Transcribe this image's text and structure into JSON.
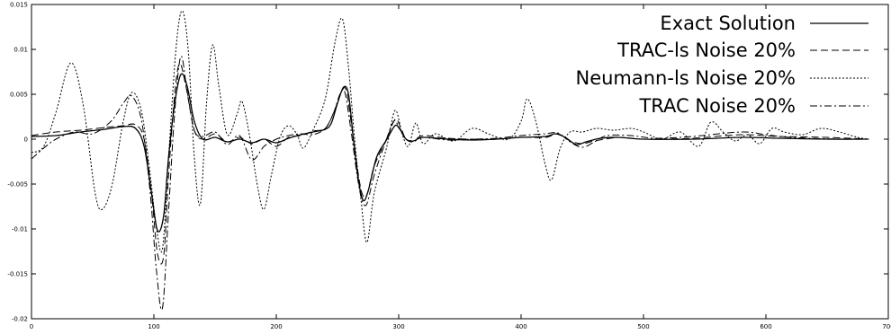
{
  "chart_data": {
    "type": "line",
    "title": "",
    "xlabel": "",
    "ylabel": "",
    "xlim": [
      0,
      700
    ],
    "ylim": [
      -0.02,
      0.015
    ],
    "grid": false,
    "legend_position": "top-right",
    "x_ticks": [
      {
        "value": 0,
        "label": "0"
      },
      {
        "value": 100,
        "label": "100"
      },
      {
        "value": 200,
        "label": "200"
      },
      {
        "value": 300,
        "label": "300"
      },
      {
        "value": 400,
        "label": "400"
      },
      {
        "value": 500,
        "label": "500"
      },
      {
        "value": 600,
        "label": "600"
      },
      {
        "value": 700,
        "label": "700"
      }
    ],
    "y_ticks": [
      {
        "value": 0.015,
        "label": "0.015"
      },
      {
        "value": 0.01,
        "label": "0.01"
      },
      {
        "value": 0.005,
        "label": "0.005"
      },
      {
        "value": 0,
        "label": "0"
      },
      {
        "value": -0.005,
        "label": "-0.005"
      },
      {
        "value": -0.01,
        "label": "-0.01"
      },
      {
        "value": -0.015,
        "label": "-0.015"
      },
      {
        "value": -0.02,
        "label": "-0.02"
      }
    ],
    "series": [
      {
        "name": "Exact Solution",
        "dash": "solid",
        "points": [
          [
            0,
            0.0003
          ],
          [
            20,
            0.0004
          ],
          [
            40,
            0.0008
          ],
          [
            60,
            0.0011
          ],
          [
            75,
            0.0014
          ],
          [
            85,
            0.0012
          ],
          [
            92,
            -0.0008
          ],
          [
            98,
            -0.006
          ],
          [
            103,
            -0.0102
          ],
          [
            108,
            -0.0085
          ],
          [
            112,
            -0.002
          ],
          [
            117,
            0.004
          ],
          [
            122,
            0.0072
          ],
          [
            127,
            0.006
          ],
          [
            133,
            0.002
          ],
          [
            140,
            0
          ],
          [
            150,
            0.0002
          ],
          [
            160,
            -0.0003
          ],
          [
            170,
            0
          ],
          [
            180,
            -0.0004
          ],
          [
            190,
            0
          ],
          [
            200,
            -0.0004
          ],
          [
            210,
            0.0001
          ],
          [
            220,
            0.0005
          ],
          [
            230,
            0.0008
          ],
          [
            240,
            0.0011
          ],
          [
            245,
            0.0018
          ],
          [
            250,
            0.004
          ],
          [
            255,
            0.0058
          ],
          [
            259,
            0.005
          ],
          [
            263,
            0
          ],
          [
            267,
            -0.0045
          ],
          [
            271,
            -0.0068
          ],
          [
            275,
            -0.0058
          ],
          [
            282,
            -0.002
          ],
          [
            290,
            -0.0001
          ],
          [
            297,
            0.0015
          ],
          [
            301,
            0.0011
          ],
          [
            306,
            0
          ],
          [
            312,
            -0.0002
          ],
          [
            320,
            0.0002
          ],
          [
            340,
            0
          ],
          [
            360,
            -0.0001
          ],
          [
            380,
            0
          ],
          [
            400,
            0.0002
          ],
          [
            420,
            0.0003
          ],
          [
            428,
            0.0006
          ],
          [
            436,
            0.0002
          ],
          [
            445,
            -0.0006
          ],
          [
            453,
            -0.0003
          ],
          [
            465,
            0.0001
          ],
          [
            480,
            0.0002
          ],
          [
            500,
            0
          ],
          [
            540,
            0
          ],
          [
            580,
            0.0002
          ],
          [
            610,
            0.0001
          ],
          [
            650,
            0
          ],
          [
            684,
            0
          ]
        ]
      },
      {
        "name": "TRAC-ls Noise 20%",
        "dash": "8,4",
        "points": [
          [
            0,
            0.0004
          ],
          [
            20,
            0.0008
          ],
          [
            40,
            0.001
          ],
          [
            60,
            0.0013
          ],
          [
            75,
            0.0015
          ],
          [
            85,
            0.0016
          ],
          [
            92,
            0
          ],
          [
            98,
            -0.006
          ],
          [
            103,
            -0.0128
          ],
          [
            108,
            -0.013
          ],
          [
            112,
            -0.004
          ],
          [
            117,
            0.005
          ],
          [
            121,
            0.0084
          ],
          [
            126,
            0.006
          ],
          [
            133,
            0.001
          ],
          [
            140,
            0
          ],
          [
            150,
            0.0006
          ],
          [
            160,
            -0.0003
          ],
          [
            170,
            0.0002
          ],
          [
            180,
            -0.0005
          ],
          [
            190,
            0
          ],
          [
            200,
            -0.0008
          ],
          [
            210,
            0.0002
          ],
          [
            220,
            0.0004
          ],
          [
            230,
            0.0009
          ],
          [
            240,
            0.0012
          ],
          [
            247,
            0.003
          ],
          [
            253,
            0.0052
          ],
          [
            257,
            0.0055
          ],
          [
            261,
            0.002
          ],
          [
            266,
            -0.003
          ],
          [
            270,
            -0.006
          ],
          [
            274,
            -0.0062
          ],
          [
            280,
            -0.003
          ],
          [
            290,
            0
          ],
          [
            297,
            0.0022
          ],
          [
            301,
            0.0015
          ],
          [
            306,
            0
          ],
          [
            312,
            -0.0002
          ],
          [
            320,
            0.0004
          ],
          [
            340,
            0.0001
          ],
          [
            360,
            0
          ],
          [
            380,
            0
          ],
          [
            400,
            0.0002
          ],
          [
            420,
            0.0002
          ],
          [
            430,
            0.0006
          ],
          [
            440,
            -0.0002
          ],
          [
            450,
            -0.0005
          ],
          [
            460,
            -0.0002
          ],
          [
            480,
            0.0002
          ],
          [
            500,
            0
          ],
          [
            540,
            0.0001
          ],
          [
            580,
            0.0005
          ],
          [
            610,
            0.0003
          ],
          [
            650,
            0.0002
          ],
          [
            684,
            0
          ]
        ]
      },
      {
        "name": "Neumann-ls Noise 20%",
        "dash": "2,2",
        "points": [
          [
            0,
            -0.0015
          ],
          [
            10,
            -0.0008
          ],
          [
            20,
            0.003
          ],
          [
            32,
            0.0085
          ],
          [
            42,
            0.004
          ],
          [
            52,
            -0.006
          ],
          [
            58,
            -0.0078
          ],
          [
            66,
            -0.005
          ],
          [
            75,
            0.002
          ],
          [
            82,
            0.0052
          ],
          [
            90,
            0.003
          ],
          [
            97,
            -0.004
          ],
          [
            102,
            -0.0098
          ],
          [
            107,
            -0.0122
          ],
          [
            112,
            -0.002
          ],
          [
            118,
            0.01
          ],
          [
            123,
            0.0143
          ],
          [
            128,
            0.01
          ],
          [
            133,
            -0.002
          ],
          [
            138,
            -0.0072
          ],
          [
            143,
            0.004
          ],
          [
            148,
            0.0105
          ],
          [
            153,
            0.006
          ],
          [
            160,
            0.0005
          ],
          [
            168,
            0.0028
          ],
          [
            172,
            0.0042
          ],
          [
            178,
            0.0005
          ],
          [
            185,
            -0.0055
          ],
          [
            190,
            -0.0078
          ],
          [
            196,
            -0.004
          ],
          [
            203,
            0.0002
          ],
          [
            210,
            0.0015
          ],
          [
            217,
            0.0005
          ],
          [
            222,
            -0.001
          ],
          [
            230,
            0.001
          ],
          [
            240,
            0.0045
          ],
          [
            248,
            0.0108
          ],
          [
            254,
            0.0134
          ],
          [
            259,
            0.008
          ],
          [
            264,
            0
          ],
          [
            269,
            -0.0065
          ],
          [
            274,
            -0.0115
          ],
          [
            280,
            -0.006
          ],
          [
            290,
            -0.001
          ],
          [
            297,
            0.0032
          ],
          [
            303,
            0.0005
          ],
          [
            308,
            -0.0008
          ],
          [
            314,
            0.0018
          ],
          [
            320,
            -0.0005
          ],
          [
            330,
            0.0006
          ],
          [
            345,
            -0.0002
          ],
          [
            360,
            0.0012
          ],
          [
            375,
            0.0005
          ],
          [
            390,
            0
          ],
          [
            400,
            0.002
          ],
          [
            405,
            0.0045
          ],
          [
            412,
            0.002
          ],
          [
            420,
            -0.003
          ],
          [
            425,
            -0.0045
          ],
          [
            432,
            -0.001
          ],
          [
            440,
            0.0008
          ],
          [
            450,
            0.0008
          ],
          [
            462,
            0.0012
          ],
          [
            475,
            0.001
          ],
          [
            490,
            0.0012
          ],
          [
            500,
            0.0008
          ],
          [
            515,
            0
          ],
          [
            530,
            0.0008
          ],
          [
            545,
            -0.0008
          ],
          [
            555,
            0.0019
          ],
          [
            565,
            0.0008
          ],
          [
            575,
            -0.0002
          ],
          [
            585,
            0.0005
          ],
          [
            595,
            -0.0005
          ],
          [
            605,
            0.0012
          ],
          [
            615,
            0.0008
          ],
          [
            630,
            0.0005
          ],
          [
            645,
            0.0012
          ],
          [
            660,
            0.0008
          ],
          [
            675,
            0.0002
          ],
          [
            684,
            0
          ]
        ]
      },
      {
        "name": "TRAC Noise 20%",
        "dash": "8,3,2,3",
        "points": [
          [
            0,
            -0.0022
          ],
          [
            10,
            -0.001
          ],
          [
            20,
            0
          ],
          [
            35,
            0.0008
          ],
          [
            50,
            0.0006
          ],
          [
            65,
            0.002
          ],
          [
            75,
            0.004
          ],
          [
            82,
            0.0048
          ],
          [
            90,
            0.002
          ],
          [
            97,
            -0.006
          ],
          [
            102,
            -0.0145
          ],
          [
            107,
            -0.0188
          ],
          [
            112,
            -0.008
          ],
          [
            117,
            0.003
          ],
          [
            122,
            0.0092
          ],
          [
            127,
            0.0055
          ],
          [
            133,
            0.001
          ],
          [
            140,
            0.0003
          ],
          [
            150,
            0.0008
          ],
          [
            160,
            -0.0006
          ],
          [
            170,
            0.0004
          ],
          [
            180,
            -0.0023
          ],
          [
            190,
            -0.0008
          ],
          [
            200,
            0
          ],
          [
            210,
            0.0004
          ],
          [
            220,
            0.0006
          ],
          [
            230,
            0.0005
          ],
          [
            240,
            0.0012
          ],
          [
            247,
            0.003
          ],
          [
            252,
            0.005
          ],
          [
            256,
            0.0052
          ],
          [
            261,
            0.001
          ],
          [
            266,
            -0.004
          ],
          [
            270,
            -0.0068
          ],
          [
            274,
            -0.0072
          ],
          [
            280,
            -0.004
          ],
          [
            290,
            0
          ],
          [
            296,
            0.002
          ],
          [
            300,
            0.0014
          ],
          [
            306,
            0
          ],
          [
            312,
            -0.0003
          ],
          [
            320,
            0.0002
          ],
          [
            340,
            -0.0001
          ],
          [
            360,
            0
          ],
          [
            380,
            0.0001
          ],
          [
            400,
            0.0004
          ],
          [
            420,
            0.0006
          ],
          [
            430,
            0.0007
          ],
          [
            440,
            -0.0003
          ],
          [
            450,
            -0.0009
          ],
          [
            460,
            -0.0003
          ],
          [
            470,
            0.0004
          ],
          [
            490,
            0.0004
          ],
          [
            510,
            0.0001
          ],
          [
            540,
            0.0003
          ],
          [
            580,
            0.0008
          ],
          [
            600,
            0.0005
          ],
          [
            620,
            0.0002
          ],
          [
            660,
            0
          ],
          [
            684,
            0
          ]
        ]
      }
    ]
  }
}
